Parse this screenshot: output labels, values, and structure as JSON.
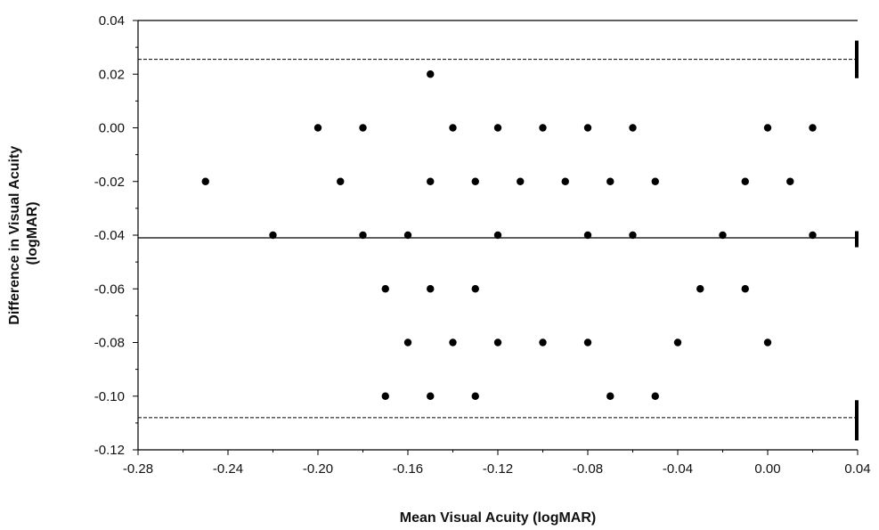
{
  "chart_data": {
    "type": "scatter",
    "xlabel": "Mean Visual Acuity (logMAR)",
    "ylabel_lines": [
      "Difference in Visual Acuity",
      "(logMAR)"
    ],
    "xlim": [
      -0.28,
      0.04
    ],
    "ylim": [
      -0.12,
      0.04
    ],
    "x_ticks": [
      -0.28,
      -0.24,
      -0.2,
      -0.16,
      -0.12,
      -0.08,
      -0.04,
      0.0,
      0.04
    ],
    "x_tick_labels": [
      "-0.28",
      "-0.24",
      "-0.20",
      "-0.16",
      "-0.12",
      "-0.08",
      "-0.04",
      "0.00",
      "0.04"
    ],
    "y_ticks": [
      -0.12,
      -0.1,
      -0.08,
      -0.06,
      -0.04,
      -0.02,
      0.0,
      0.02,
      0.04
    ],
    "y_tick_labels": [
      "-0.12",
      "-0.10",
      "-0.08",
      "-0.06",
      "-0.04",
      "-0.02",
      "0.00",
      "0.02",
      "0.04"
    ],
    "minor_tick_step": 0.01,
    "grid": false,
    "reference_lines": [
      {
        "y": 0.0255,
        "style": "dashed"
      },
      {
        "y": -0.041,
        "style": "solid"
      },
      {
        "y": -0.108,
        "style": "dashed"
      }
    ],
    "right_markers": [
      {
        "y_from": 0.0325,
        "y_to": 0.0185
      },
      {
        "y_from": -0.0385,
        "y_to": -0.0445
      },
      {
        "y_from": -0.1015,
        "y_to": -0.1165
      }
    ],
    "points": [
      {
        "x": -0.15,
        "y": 0.02
      },
      {
        "x": -0.2,
        "y": 0.0
      },
      {
        "x": -0.18,
        "y": 0.0
      },
      {
        "x": -0.14,
        "y": 0.0
      },
      {
        "x": -0.12,
        "y": 0.0
      },
      {
        "x": -0.1,
        "y": 0.0
      },
      {
        "x": -0.08,
        "y": 0.0
      },
      {
        "x": -0.06,
        "y": 0.0
      },
      {
        "x": 0.0,
        "y": 0.0
      },
      {
        "x": 0.02,
        "y": 0.0
      },
      {
        "x": -0.25,
        "y": -0.02
      },
      {
        "x": -0.19,
        "y": -0.02
      },
      {
        "x": -0.15,
        "y": -0.02
      },
      {
        "x": -0.13,
        "y": -0.02
      },
      {
        "x": -0.11,
        "y": -0.02
      },
      {
        "x": -0.09,
        "y": -0.02
      },
      {
        "x": -0.07,
        "y": -0.02
      },
      {
        "x": -0.05,
        "y": -0.02
      },
      {
        "x": -0.01,
        "y": -0.02
      },
      {
        "x": 0.01,
        "y": -0.02
      },
      {
        "x": -0.22,
        "y": -0.04
      },
      {
        "x": -0.18,
        "y": -0.04
      },
      {
        "x": -0.16,
        "y": -0.04
      },
      {
        "x": -0.12,
        "y": -0.04
      },
      {
        "x": -0.08,
        "y": -0.04
      },
      {
        "x": -0.06,
        "y": -0.04
      },
      {
        "x": -0.02,
        "y": -0.04
      },
      {
        "x": 0.02,
        "y": -0.04
      },
      {
        "x": -0.17,
        "y": -0.06
      },
      {
        "x": -0.15,
        "y": -0.06
      },
      {
        "x": -0.13,
        "y": -0.06
      },
      {
        "x": -0.03,
        "y": -0.06
      },
      {
        "x": -0.01,
        "y": -0.06
      },
      {
        "x": -0.16,
        "y": -0.08
      },
      {
        "x": -0.14,
        "y": -0.08
      },
      {
        "x": -0.12,
        "y": -0.08
      },
      {
        "x": -0.1,
        "y": -0.08
      },
      {
        "x": -0.08,
        "y": -0.08
      },
      {
        "x": -0.04,
        "y": -0.08
      },
      {
        "x": 0.0,
        "y": -0.08
      },
      {
        "x": -0.17,
        "y": -0.1
      },
      {
        "x": -0.15,
        "y": -0.1
      },
      {
        "x": -0.13,
        "y": -0.1
      },
      {
        "x": -0.07,
        "y": -0.1
      },
      {
        "x": -0.05,
        "y": -0.1
      }
    ],
    "colors": {
      "points": "#000000",
      "axes": "#000000",
      "lines": "#000000"
    }
  }
}
